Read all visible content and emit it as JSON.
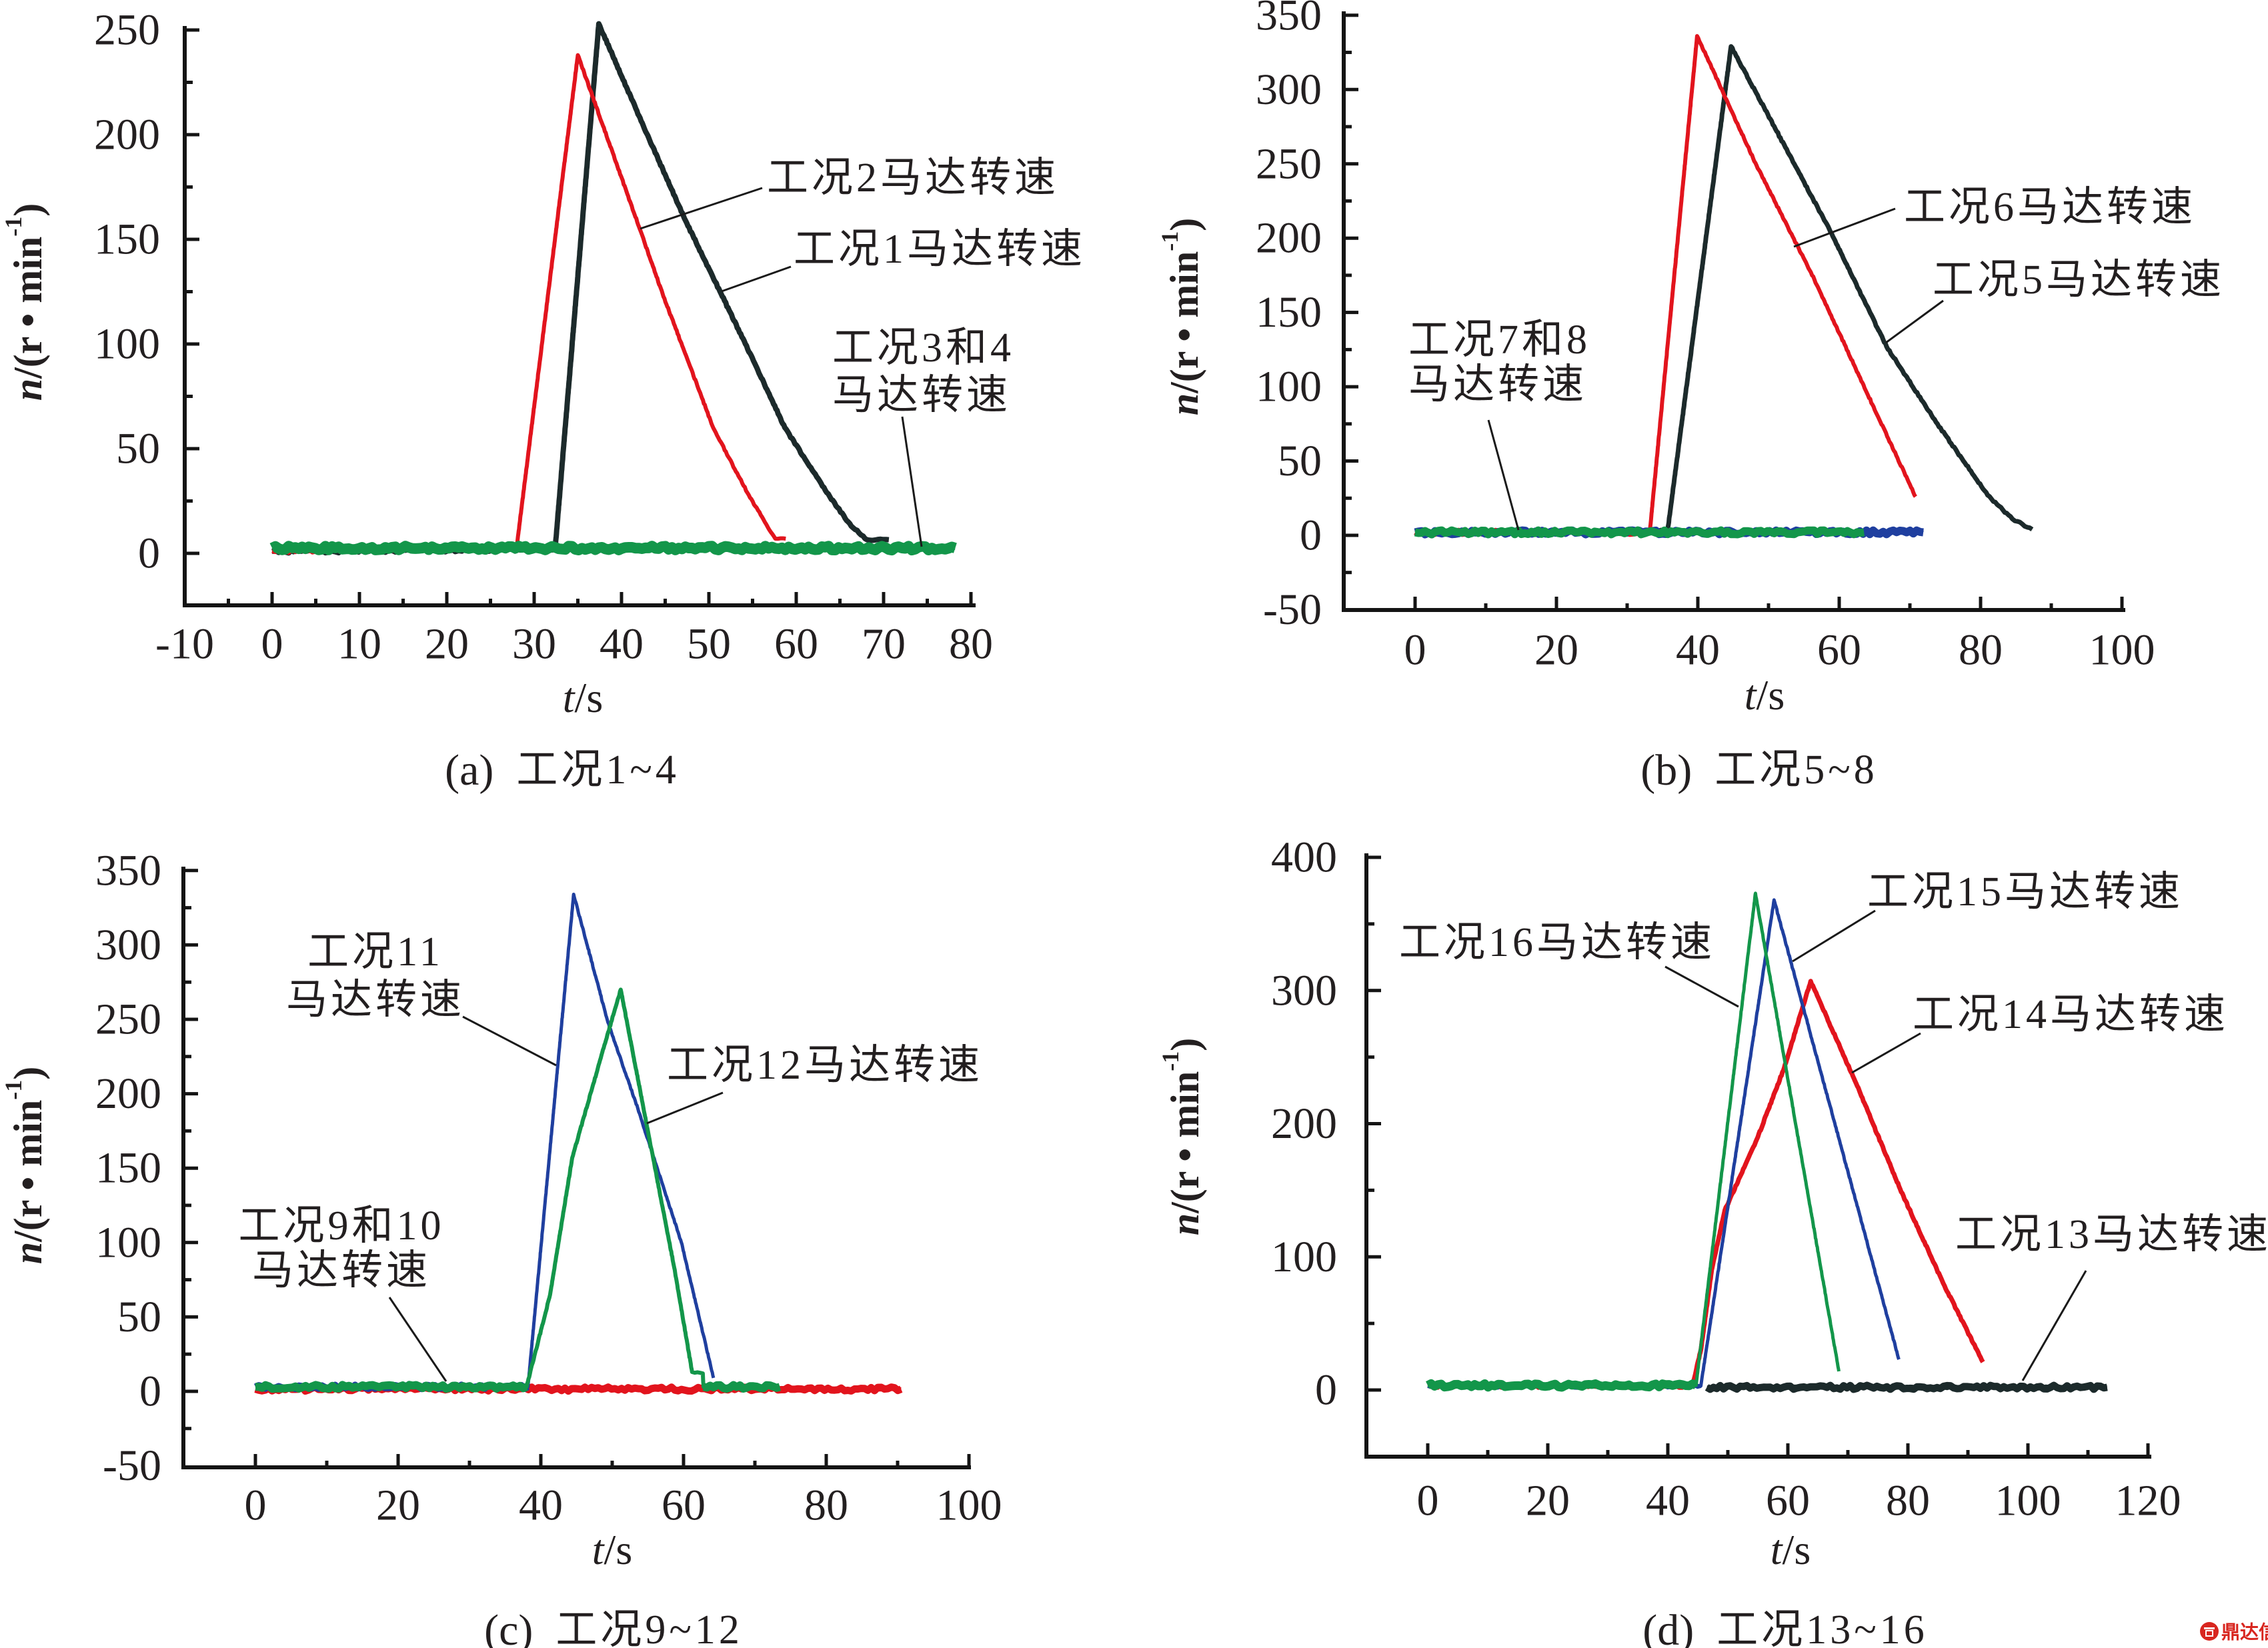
{
  "figure": {
    "watermark": "鼎达信"
  },
  "chart_data": [
    {
      "type": "line",
      "caption": {
        "tag": "(a)",
        "text": "工况1~4"
      },
      "xlabel": {
        "var": "t",
        "unit": "/s"
      },
      "ylabel": {
        "var": "n",
        "unit": "/(r • min",
        "sup": "-1",
        "close": ")"
      },
      "xlim": [
        -10,
        80
      ],
      "ylim": [
        -25,
        250
      ],
      "xticks": [
        -10,
        0,
        10,
        20,
        30,
        40,
        50,
        60,
        70,
        80
      ],
      "yticks": [
        0,
        50,
        100,
        150,
        200,
        250
      ],
      "grid": false,
      "series": [
        {
          "name": "工况1",
          "color": "#1c2a2b",
          "points": [
            [
              0,
              1
            ],
            [
              32.4,
              2
            ],
            [
              37.4,
              253
            ],
            [
              42,
              209
            ],
            [
              47.2,
              160
            ],
            [
              51.4,
              124
            ],
            [
              55.1,
              92
            ],
            [
              58.7,
              60
            ],
            [
              63.5,
              29
            ],
            [
              66.3,
              13
            ],
            [
              68.1,
              6.5
            ],
            [
              70.6,
              6.5
            ]
          ]
        },
        {
          "name": "工况2",
          "color": "#e2141d",
          "points": [
            [
              0,
              1
            ],
            [
              28,
              3
            ],
            [
              35,
              238
            ],
            [
              42,
              156
            ],
            [
              44.7,
              124
            ],
            [
              47.6,
              92
            ],
            [
              50.5,
              60
            ],
            [
              54.4,
              29
            ],
            [
              56.4,
              15
            ],
            [
              57.6,
              7
            ],
            [
              58.8,
              7
            ]
          ]
        },
        {
          "name": "工况3和4",
          "color": "#13964a",
          "points": [
            [
              0,
              2.5
            ],
            [
              78.2,
              2.5
            ]
          ]
        }
      ],
      "annotations": [
        {
          "lines": [
            "工况2马达转速"
          ]
        },
        {
          "lines": [
            "工况1马达转速"
          ]
        },
        {
          "lines": [
            "工况3和4",
            "马达转速"
          ]
        }
      ]
    },
    {
      "type": "line",
      "caption": {
        "tag": "(b)",
        "text": "工况5~8"
      },
      "xlabel": {
        "var": "t",
        "unit": "/s"
      },
      "ylabel": {
        "var": "n",
        "unit": "/(r • min",
        "sup": "-1",
        "close": ")"
      },
      "xlim": [
        -10,
        100
      ],
      "ylim": [
        -50,
        350
      ],
      "xticks": [
        0,
        20,
        40,
        60,
        80,
        100
      ],
      "yticks": [
        -50,
        0,
        50,
        100,
        150,
        200,
        250,
        300,
        350
      ],
      "grid": false,
      "series": [
        {
          "name": "工况5",
          "color": "#1c2a2b",
          "points": [
            [
              0,
              2
            ],
            [
              35.7,
              2
            ],
            [
              44.7,
              329
            ],
            [
              52.4,
              261
            ],
            [
              58.6,
              206
            ],
            [
              66.7,
              127
            ],
            [
              73.9,
              75
            ],
            [
              81,
              27
            ],
            [
              84.5,
              11
            ],
            [
              87.3,
              4
            ]
          ]
        },
        {
          "name": "工况6",
          "color": "#e2141d",
          "points": [
            [
              0,
              2
            ],
            [
              33.2,
              2
            ],
            [
              39.9,
              336
            ],
            [
              48.3,
              249
            ],
            [
              56.5,
              172
            ],
            [
              64.7,
              88
            ],
            [
              70.8,
              26
            ]
          ]
        },
        {
          "name": "工况7和8",
          "color": "#1f3f9f",
          "points": [
            [
              0,
              2
            ],
            [
              71.9,
              2
            ]
          ]
        },
        {
          "name": "工况7和8",
          "color": "#13964a",
          "points": [
            [
              0,
              2
            ],
            [
              63.5,
              2
            ]
          ]
        }
      ],
      "annotations": [
        {
          "lines": [
            "工况6马达转速"
          ]
        },
        {
          "lines": [
            "工况5马达转速"
          ]
        },
        {
          "lines": [
            "工况7和8",
            "马达转速"
          ]
        }
      ]
    },
    {
      "type": "line",
      "caption": {
        "tag": "(c)",
        "text": "工况9~12"
      },
      "xlabel": {
        "var": "t",
        "unit": "/s"
      },
      "ylabel": {
        "var": "n",
        "unit": "/(r • min",
        "sup": "-1",
        "close": ")"
      },
      "xlim": [
        -10,
        100
      ],
      "ylim": [
        -50,
        350
      ],
      "xticks": [
        0,
        20,
        40,
        60,
        80,
        100
      ],
      "yticks": [
        -50,
        0,
        50,
        100,
        150,
        200,
        250,
        300,
        350
      ],
      "grid": false,
      "series": [
        {
          "name": "工况9和10",
          "color": "#e2141d",
          "points": [
            [
              0,
              1.5
            ],
            [
              90.5,
              1.5
            ]
          ]
        },
        {
          "name": "工况11",
          "color": "#1f3f9f",
          "points": [
            [
              0,
              3
            ],
            [
              38.2,
              3
            ],
            [
              44.6,
              334
            ],
            [
              49.4,
              248
            ],
            [
              53.6,
              190
            ],
            [
              59.7,
              100
            ],
            [
              64.2,
              9
            ]
          ]
        },
        {
          "name": "工况12",
          "color": "#13964a",
          "points": [
            [
              0,
              3
            ],
            [
              38,
              3
            ],
            [
              41.3,
              65
            ],
            [
              44.4,
              157
            ],
            [
              48.4,
              224
            ],
            [
              51.2,
              270
            ],
            [
              54.6,
              185
            ],
            [
              58.7,
              83
            ],
            [
              61.2,
              13
            ],
            [
              62.7,
              12
            ],
            [
              62.8,
              3
            ],
            [
              73.5,
              3
            ]
          ]
        }
      ],
      "annotations": [
        {
          "lines": [
            "工况11",
            "马达转速"
          ]
        },
        {
          "lines": [
            "工况12马达转速"
          ]
        },
        {
          "lines": [
            "工况9和10",
            "马达转速"
          ]
        }
      ]
    },
    {
      "type": "line",
      "caption": {
        "tag": "(d)",
        "text": "工况13~16"
      },
      "xlabel": {
        "var": "t",
        "unit": "/s"
      },
      "ylabel": {
        "var": "n",
        "unit": "/(r • min",
        "sup": "-1",
        "close": ")"
      },
      "xlim": [
        -10,
        120
      ],
      "ylim": [
        -50,
        400
      ],
      "xticks": [
        0,
        20,
        40,
        60,
        80,
        100,
        120
      ],
      "yticks": [
        0,
        100,
        200,
        300,
        400
      ],
      "grid": false,
      "series": [
        {
          "name": "工况13",
          "color": "#1c2a2b",
          "points": [
            [
              46.5,
              2
            ],
            [
              113.2,
              2
            ]
          ]
        },
        {
          "name": "工况14",
          "color": "#e2141d",
          "points": [
            [
              0,
              3
            ],
            [
              44.1,
              3
            ],
            [
              45.5,
              30
            ],
            [
              47.3,
              90
            ],
            [
              49.5,
              135
            ],
            [
              52,
              160
            ],
            [
              55,
              190
            ],
            [
              59.4,
              242
            ],
            [
              63.8,
              307
            ],
            [
              71.4,
              230
            ],
            [
              78.7,
              151
            ],
            [
              85.9,
              80
            ],
            [
              92.5,
              21
            ]
          ]
        },
        {
          "name": "工况15",
          "color": "#1f3f9f",
          "points": [
            [
              0,
              3
            ],
            [
              45.5,
              3
            ],
            [
              57.7,
              368
            ],
            [
              78.5,
              23
            ]
          ]
        },
        {
          "name": "工况16",
          "color": "#13964a",
          "points": [
            [
              0,
              3.5
            ],
            [
              44.7,
              3.5
            ],
            [
              54.6,
              373
            ],
            [
              68.5,
              14
            ]
          ]
        }
      ],
      "annotations": [
        {
          "lines": [
            "工况16马达转速"
          ]
        },
        {
          "lines": [
            "工况15马达转速"
          ]
        },
        {
          "lines": [
            "工况14马达转速"
          ]
        },
        {
          "lines": [
            "工况13马达转速"
          ]
        }
      ]
    }
  ]
}
